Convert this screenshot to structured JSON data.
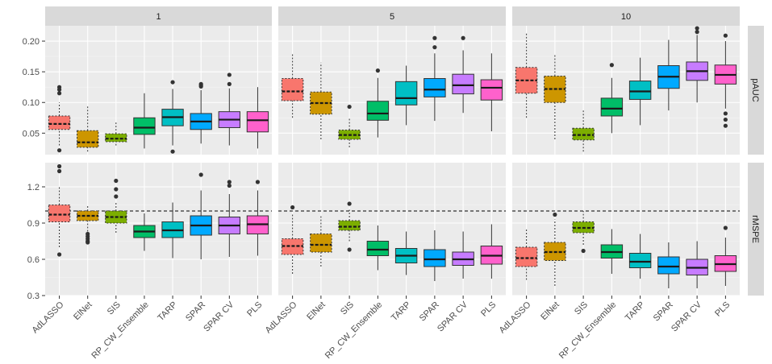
{
  "chart_data": {
    "type": "boxplot",
    "columns": [
      "1",
      "5",
      "10"
    ],
    "rows": [
      "pAUC",
      "rMSPE"
    ],
    "categories": [
      "AdLASSO",
      "ElNet",
      "SIS",
      "RP_CW_Ensemble",
      "TARP",
      "SPAR",
      "SPAR CV",
      "PLS"
    ],
    "fill_colors": [
      "#F8766D",
      "#CD9600",
      "#7CAE00",
      "#00BE67",
      "#00BFC4",
      "#00A9FF",
      "#C77CFF",
      "#FF61CC"
    ],
    "dashed_categories": [
      "AdLASSO",
      "ElNet",
      "SIS"
    ],
    "y_axes": {
      "pAUC": {
        "ylim": [
          0.015,
          0.225
        ],
        "ticks": [
          0.05,
          0.1,
          0.15,
          0.2
        ],
        "tick_labels": [
          "0.05",
          "0.10",
          "0.15",
          "0.20"
        ]
      },
      "rMSPE": {
        "ylim": [
          0.3,
          1.4
        ],
        "ticks": [
          0.3,
          0.6,
          0.9,
          1.2
        ],
        "tick_labels": [
          "0.3",
          "0.6",
          "0.9",
          "1.2"
        ],
        "reference_line": 1.0
      }
    },
    "panels": {
      "pAUC": {
        "1": [
          {
            "q1": 0.056,
            "median": 0.065,
            "q3": 0.078,
            "whisker_low": 0.03,
            "whisker_high": 0.1,
            "outliers": [
              0.125,
              0.121,
              0.115,
              0.022
            ]
          },
          {
            "q1": 0.027,
            "median": 0.035,
            "q3": 0.054,
            "whisker_low": 0.02,
            "whisker_high": 0.094,
            "outliers": []
          },
          {
            "q1": 0.036,
            "median": 0.041,
            "q3": 0.049,
            "whisker_low": 0.03,
            "whisker_high": 0.068,
            "outliers": []
          },
          {
            "q1": 0.048,
            "median": 0.059,
            "q3": 0.075,
            "whisker_low": 0.025,
            "whisker_high": 0.115,
            "outliers": []
          },
          {
            "q1": 0.062,
            "median": 0.076,
            "q3": 0.089,
            "whisker_low": 0.03,
            "whisker_high": 0.122,
            "outliers": [
              0.133,
              0.02
            ]
          },
          {
            "q1": 0.056,
            "median": 0.069,
            "q3": 0.082,
            "whisker_low": 0.033,
            "whisker_high": 0.12,
            "outliers": [
              0.13,
              0.128,
              0.126
            ]
          },
          {
            "q1": 0.059,
            "median": 0.072,
            "q3": 0.085,
            "whisker_low": 0.03,
            "whisker_high": 0.123,
            "outliers": [
              0.145,
              0.13
            ]
          },
          {
            "q1": 0.052,
            "median": 0.071,
            "q3": 0.085,
            "whisker_low": 0.025,
            "whisker_high": 0.125,
            "outliers": []
          }
        ],
        "5": [
          {
            "q1": 0.103,
            "median": 0.118,
            "q3": 0.139,
            "whisker_low": 0.075,
            "whisker_high": 0.18,
            "outliers": []
          },
          {
            "q1": 0.081,
            "median": 0.099,
            "q3": 0.117,
            "whisker_low": 0.04,
            "whisker_high": 0.165,
            "outliers": []
          },
          {
            "q1": 0.04,
            "median": 0.047,
            "q3": 0.055,
            "whisker_low": 0.027,
            "whisker_high": 0.075,
            "outliers": [
              0.093
            ]
          },
          {
            "q1": 0.071,
            "median": 0.082,
            "q3": 0.102,
            "whisker_low": 0.043,
            "whisker_high": 0.14,
            "outliers": [
              0.152
            ]
          },
          {
            "q1": 0.096,
            "median": 0.107,
            "q3": 0.134,
            "whisker_low": 0.063,
            "whisker_high": 0.16,
            "outliers": []
          },
          {
            "q1": 0.109,
            "median": 0.121,
            "q3": 0.139,
            "whisker_low": 0.07,
            "whisker_high": 0.18,
            "outliers": [
              0.205,
              0.19
            ]
          },
          {
            "q1": 0.114,
            "median": 0.128,
            "q3": 0.146,
            "whisker_low": 0.083,
            "whisker_high": 0.185,
            "outliers": [
              0.205
            ]
          },
          {
            "q1": 0.104,
            "median": 0.124,
            "q3": 0.137,
            "whisker_low": 0.053,
            "whisker_high": 0.18,
            "outliers": []
          }
        ],
        "10": [
          {
            "q1": 0.115,
            "median": 0.136,
            "q3": 0.157,
            "whisker_low": 0.075,
            "whisker_high": 0.213,
            "outliers": []
          },
          {
            "q1": 0.1,
            "median": 0.122,
            "q3": 0.143,
            "whisker_low": 0.04,
            "whisker_high": 0.178,
            "outliers": []
          },
          {
            "q1": 0.039,
            "median": 0.047,
            "q3": 0.058,
            "whisker_low": 0.02,
            "whisker_high": 0.087,
            "outliers": []
          },
          {
            "q1": 0.078,
            "median": 0.09,
            "q3": 0.107,
            "whisker_low": 0.05,
            "whisker_high": 0.14,
            "outliers": [
              0.161
            ]
          },
          {
            "q1": 0.105,
            "median": 0.118,
            "q3": 0.135,
            "whisker_low": 0.063,
            "whisker_high": 0.173,
            "outliers": []
          },
          {
            "q1": 0.123,
            "median": 0.142,
            "q3": 0.16,
            "whisker_low": 0.087,
            "whisker_high": 0.202,
            "outliers": []
          },
          {
            "q1": 0.136,
            "median": 0.151,
            "q3": 0.166,
            "whisker_low": 0.1,
            "whisker_high": 0.21,
            "outliers": [
              0.221,
              0.215
            ]
          },
          {
            "q1": 0.13,
            "median": 0.145,
            "q3": 0.161,
            "whisker_low": 0.09,
            "whisker_high": 0.2,
            "outliers": [
              0.209,
              0.082,
              0.072,
              0.062
            ]
          }
        ]
      },
      "rMSPE": {
        "1": [
          {
            "q1": 0.91,
            "median": 0.97,
            "q3": 1.05,
            "whisker_low": 0.7,
            "whisker_high": 1.2,
            "outliers": [
              1.37,
              1.33,
              0.64
            ]
          },
          {
            "q1": 0.92,
            "median": 0.96,
            "q3": 1.0,
            "whisker_low": 0.83,
            "whisker_high": 1.05,
            "outliers": [
              0.81,
              0.79,
              0.77,
              0.75,
              0.74
            ]
          },
          {
            "q1": 0.9,
            "median": 0.95,
            "q3": 1.0,
            "whisker_low": 0.82,
            "whisker_high": 1.08,
            "outliers": [
              1.25,
              1.18,
              1.12
            ]
          },
          {
            "q1": 0.78,
            "median": 0.83,
            "q3": 0.88,
            "whisker_low": 0.67,
            "whisker_high": 0.98,
            "outliers": []
          },
          {
            "q1": 0.78,
            "median": 0.84,
            "q3": 0.91,
            "whisker_low": 0.61,
            "whisker_high": 1.07,
            "outliers": []
          },
          {
            "q1": 0.8,
            "median": 0.88,
            "q3": 0.96,
            "whisker_low": 0.6,
            "whisker_high": 1.17,
            "outliers": [
              1.3
            ]
          },
          {
            "q1": 0.81,
            "median": 0.88,
            "q3": 0.95,
            "whisker_low": 0.62,
            "whisker_high": 1.14,
            "outliers": [
              1.24,
              1.21
            ]
          },
          {
            "q1": 0.81,
            "median": 0.89,
            "q3": 0.96,
            "whisker_low": 0.63,
            "whisker_high": 1.17,
            "outliers": [
              1.24
            ]
          }
        ],
        "5": [
          {
            "q1": 0.64,
            "median": 0.71,
            "q3": 0.77,
            "whisker_low": 0.48,
            "whisker_high": 0.97,
            "outliers": [
              1.03
            ]
          },
          {
            "q1": 0.66,
            "median": 0.72,
            "q3": 0.81,
            "whisker_low": 0.54,
            "whisker_high": 0.97,
            "outliers": []
          },
          {
            "q1": 0.84,
            "median": 0.87,
            "q3": 0.92,
            "whisker_low": 0.75,
            "whisker_high": 1.01,
            "outliers": [
              1.06,
              0.68
            ]
          },
          {
            "q1": 0.63,
            "median": 0.68,
            "q3": 0.75,
            "whisker_low": 0.51,
            "whisker_high": 0.88,
            "outliers": []
          },
          {
            "q1": 0.57,
            "median": 0.63,
            "q3": 0.69,
            "whisker_low": 0.47,
            "whisker_high": 0.83,
            "outliers": []
          },
          {
            "q1": 0.54,
            "median": 0.6,
            "q3": 0.68,
            "whisker_low": 0.42,
            "whisker_high": 0.84,
            "outliers": []
          },
          {
            "q1": 0.55,
            "median": 0.6,
            "q3": 0.66,
            "whisker_low": 0.44,
            "whisker_high": 0.83,
            "outliers": []
          },
          {
            "q1": 0.56,
            "median": 0.63,
            "q3": 0.71,
            "whisker_low": 0.44,
            "whisker_high": 0.89,
            "outliers": []
          }
        ],
        "10": [
          {
            "q1": 0.54,
            "median": 0.61,
            "q3": 0.7,
            "whisker_low": 0.43,
            "whisker_high": 0.86,
            "outliers": []
          },
          {
            "q1": 0.59,
            "median": 0.66,
            "q3": 0.74,
            "whisker_low": 0.38,
            "whisker_high": 0.93,
            "outliers": [
              0.97
            ]
          },
          {
            "q1": 0.82,
            "median": 0.86,
            "q3": 0.91,
            "whisker_low": 0.72,
            "whisker_high": 1.0,
            "outliers": [
              0.67
            ]
          },
          {
            "q1": 0.61,
            "median": 0.66,
            "q3": 0.72,
            "whisker_low": 0.48,
            "whisker_high": 0.85,
            "outliers": []
          },
          {
            "q1": 0.53,
            "median": 0.58,
            "q3": 0.65,
            "whisker_low": 0.44,
            "whisker_high": 0.81,
            "outliers": []
          },
          {
            "q1": 0.48,
            "median": 0.54,
            "q3": 0.62,
            "whisker_low": 0.36,
            "whisker_high": 0.74,
            "outliers": []
          },
          {
            "q1": 0.47,
            "median": 0.53,
            "q3": 0.6,
            "whisker_low": 0.36,
            "whisker_high": 0.75,
            "outliers": []
          },
          {
            "q1": 0.5,
            "median": 0.56,
            "q3": 0.63,
            "whisker_low": 0.38,
            "whisker_high": 0.78,
            "outliers": [
              0.86
            ]
          }
        ]
      }
    },
    "title": "",
    "xlabel": "",
    "ylabel": ""
  }
}
